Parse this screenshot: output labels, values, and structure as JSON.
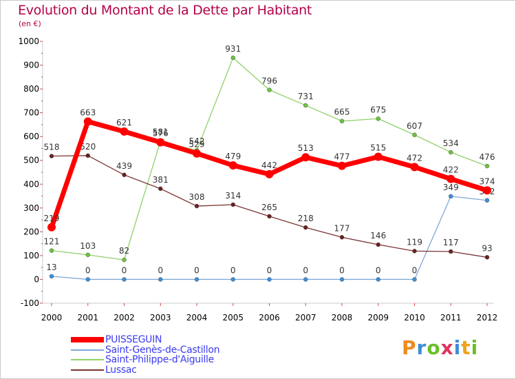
{
  "title": "Evolution du Montant de la Dette par Habitant",
  "unit_label": "(en €)",
  "logo": {
    "text": "Proxiti",
    "colors": [
      "#f08a1c",
      "#3b8ed8",
      "#6bbf2a",
      "#e0325f",
      "#3b8ed8",
      "#f0a21c",
      "#6bbf2a"
    ]
  },
  "chart_data": {
    "type": "line",
    "x": [
      "2000",
      "2001",
      "2002",
      "2003",
      "2004",
      "2005",
      "2006",
      "2007",
      "2008",
      "2009",
      "2010",
      "2011",
      "2012"
    ],
    "ylim": [
      -100,
      1000
    ],
    "yticks": [
      -100,
      0,
      100,
      200,
      300,
      400,
      500,
      600,
      700,
      800,
      900,
      1000
    ],
    "grid": false,
    "legend_position": "bottom-left",
    "series": [
      {
        "name": "Saint-Philippe-d'Aiguille",
        "color": "#8fd16a",
        "marker": "#6cc23c",
        "width": 1.3,
        "values": [
          121,
          103,
          82,
          581,
          542,
          931,
          796,
          731,
          665,
          675,
          607,
          534,
          476
        ]
      },
      {
        "name": "Saint-Genès-de-Castillon",
        "color": "#7fa8d8",
        "marker": "#3b8ed8",
        "width": 1.3,
        "values": [
          13,
          0,
          0,
          0,
          0,
          0,
          0,
          0,
          0,
          0,
          0,
          349,
          332
        ]
      },
      {
        "name": "Lussac",
        "color": "#7a3333",
        "marker": "#6b1f1f",
        "width": 1.3,
        "values": [
          518,
          520,
          439,
          381,
          308,
          314,
          265,
          218,
          177,
          146,
          119,
          117,
          93
        ]
      },
      {
        "name": "PUISSEGUIN",
        "color": "#ff0000",
        "marker": "#ff0000",
        "width": 7,
        "values": [
          219,
          663,
          621,
          576,
          529,
          479,
          442,
          513,
          477,
          515,
          472,
          422,
          374
        ]
      }
    ],
    "legend_order": [
      "PUISSEGUIN",
      "Saint-Genès-de-Castillon",
      "Saint-Philippe-d'Aiguille",
      "Lussac"
    ]
  }
}
